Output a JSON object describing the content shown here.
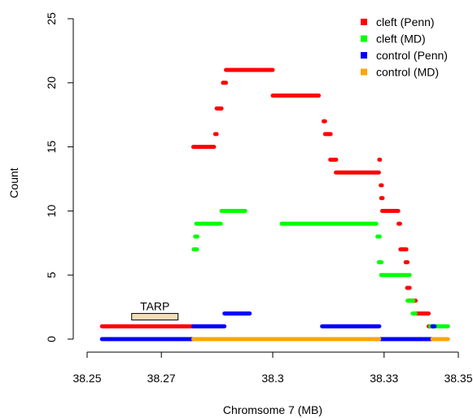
{
  "chart_data": {
    "type": "scatter",
    "title": "",
    "xlabel": "Chromsome 7 (MB)",
    "ylabel": "Count",
    "xlim": [
      38.25,
      38.35
    ],
    "ylim": [
      0,
      25
    ],
    "x_ticks": [
      38.25,
      38.27,
      38.3,
      38.33,
      38.35
    ],
    "x_tick_labels": [
      "38.25",
      "38.27",
      "38.3",
      "38.33",
      "38.35"
    ],
    "y_ticks": [
      0,
      5,
      10,
      15,
      20,
      25
    ],
    "y_tick_labels": [
      "0",
      "5",
      "10",
      "15",
      "20",
      "25"
    ],
    "grid": false,
    "legend_position": "top-right",
    "series": [
      {
        "name": "cleft (Penn)",
        "color": "#ff0000",
        "segments": [
          {
            "x": [
              38.254,
              38.2786
            ],
            "y": 1
          },
          {
            "x": [
              38.2786,
              38.2842
            ],
            "y": 15
          },
          {
            "x": [
              38.2845,
              38.2849
            ],
            "y": 16
          },
          {
            "x": [
              38.2849,
              38.2862
            ],
            "y": 18
          },
          {
            "x": [
              38.2866,
              38.2874
            ],
            "y": 20
          },
          {
            "x": [
              38.2874,
              38.3
            ],
            "y": 21
          },
          {
            "x": [
              38.3,
              38.3124
            ],
            "y": 19
          },
          {
            "x": [
              38.3137,
              38.3141
            ],
            "y": 17
          },
          {
            "x": [
              38.3141,
              38.3156
            ],
            "y": 16
          },
          {
            "x": [
              38.3155,
              38.3171
            ],
            "y": 14
          },
          {
            "x": [
              38.317,
              38.3286
            ],
            "y": 13
          },
          {
            "x": [
              38.3287,
              38.3289
            ],
            "y": 14
          },
          {
            "x": [
              38.3291,
              38.3294
            ],
            "y": 12
          },
          {
            "x": [
              38.3292,
              38.3296
            ],
            "y": 11
          },
          {
            "x": [
              38.3295,
              38.3338
            ],
            "y": 10
          },
          {
            "x": [
              38.3339,
              38.3343
            ],
            "y": 9
          },
          {
            "x": [
              38.3344,
              38.336
            ],
            "y": 7
          },
          {
            "x": [
              38.3358,
              38.3363
            ],
            "y": 6
          },
          {
            "x": [
              38.3362,
              38.3369
            ],
            "y": 4
          },
          {
            "x": [
              38.3366,
              38.3385
            ],
            "y": 3
          },
          {
            "x": [
              38.3382,
              38.342
            ],
            "y": 2
          },
          {
            "x": [
              38.342,
              38.3432
            ],
            "y": 1
          }
        ]
      },
      {
        "name": "cleft (MD)",
        "color": "#00ff00",
        "segments": [
          {
            "x": [
              38.2787,
              38.2796
            ],
            "y": 7
          },
          {
            "x": [
              38.2791,
              38.2797
            ],
            "y": 8
          },
          {
            "x": [
              38.2794,
              38.286
            ],
            "y": 9
          },
          {
            "x": [
              38.2862,
              38.2926
            ],
            "y": 10
          },
          {
            "x": [
              38.3024,
              38.3279
            ],
            "y": 9
          },
          {
            "x": [
              38.3282,
              38.3288
            ],
            "y": 8
          },
          {
            "x": [
              38.3286,
              38.3293
            ],
            "y": 6
          },
          {
            "x": [
              38.3292,
              38.3369
            ],
            "y": 5
          },
          {
            "x": [
              38.3363,
              38.3379
            ],
            "y": 3
          },
          {
            "x": [
              38.3377,
              38.3385
            ],
            "y": 2
          },
          {
            "x": [
              38.3424,
              38.3472
            ],
            "y": 1
          }
        ]
      },
      {
        "name": "control (Penn)",
        "color": "#0000ff",
        "segments": [
          {
            "x": [
              38.254,
              38.2786
            ],
            "y": 0
          },
          {
            "x": [
              38.2786,
              38.287
            ],
            "y": 1
          },
          {
            "x": [
              38.287,
              38.2938
            ],
            "y": 2
          },
          {
            "x": [
              38.3133,
              38.3287
            ],
            "y": 1
          },
          {
            "x": [
              38.3287,
              38.343
            ],
            "y": 0
          },
          {
            "x": [
              38.343,
              38.3436
            ],
            "y": 1
          }
        ]
      },
      {
        "name": "control (MD)",
        "color": "#ffa500",
        "segments": [
          {
            "x": [
              38.2786,
              38.3287
            ],
            "y": 0
          },
          {
            "x": [
              38.343,
              38.3472
            ],
            "y": 0
          }
        ]
      }
    ],
    "annotations": [
      {
        "text": "TARP",
        "x_range": [
          38.262,
          38.2745
        ],
        "y": 1.75,
        "box_fill": "#f4deb7"
      }
    ]
  }
}
